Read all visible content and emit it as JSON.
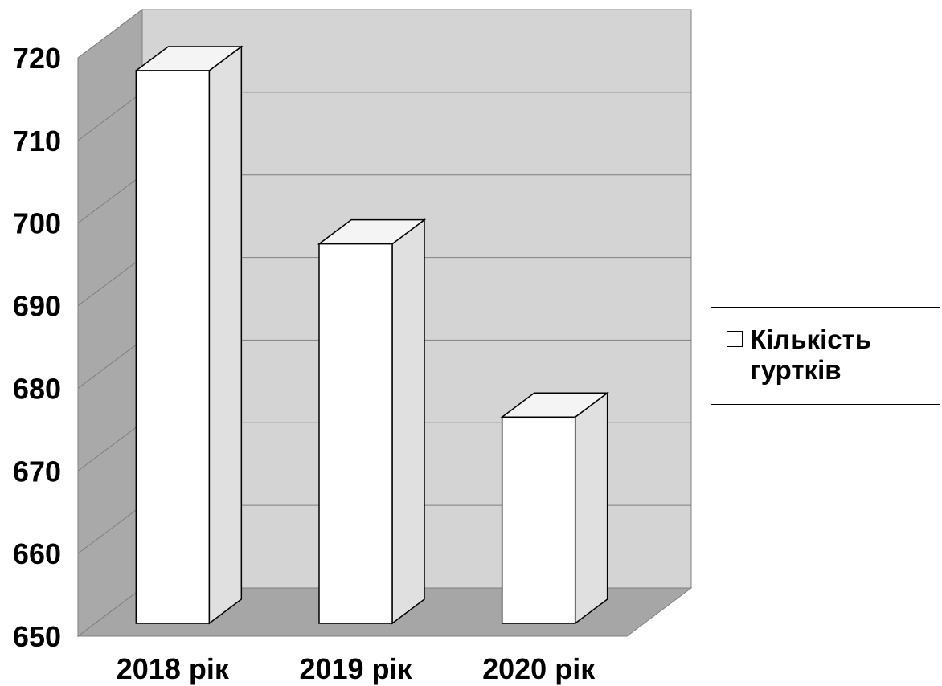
{
  "chart_data": {
    "type": "bar",
    "style": "3d-column",
    "title": "",
    "xlabel": "",
    "ylabel": "",
    "categories": [
      "2018 рік",
      "2019 рік",
      "2020 рік"
    ],
    "series": [
      {
        "name": "Кількість гуртків",
        "values": [
          717,
          696,
          675
        ]
      }
    ],
    "ylim": [
      650,
      720
    ],
    "yticks": [
      650,
      660,
      670,
      680,
      690,
      700,
      710,
      720
    ],
    "grid": true,
    "legend_position": "right",
    "colors": {
      "bar_front": "#ffffff",
      "bar_side": "#e0e0e0",
      "bar_top": "#f4f4f4",
      "back_wall": "#d4d4d4",
      "side_wall": "#a9a9a9",
      "floor": "#a6a6a6",
      "gridline": "#7f7f7f"
    }
  }
}
